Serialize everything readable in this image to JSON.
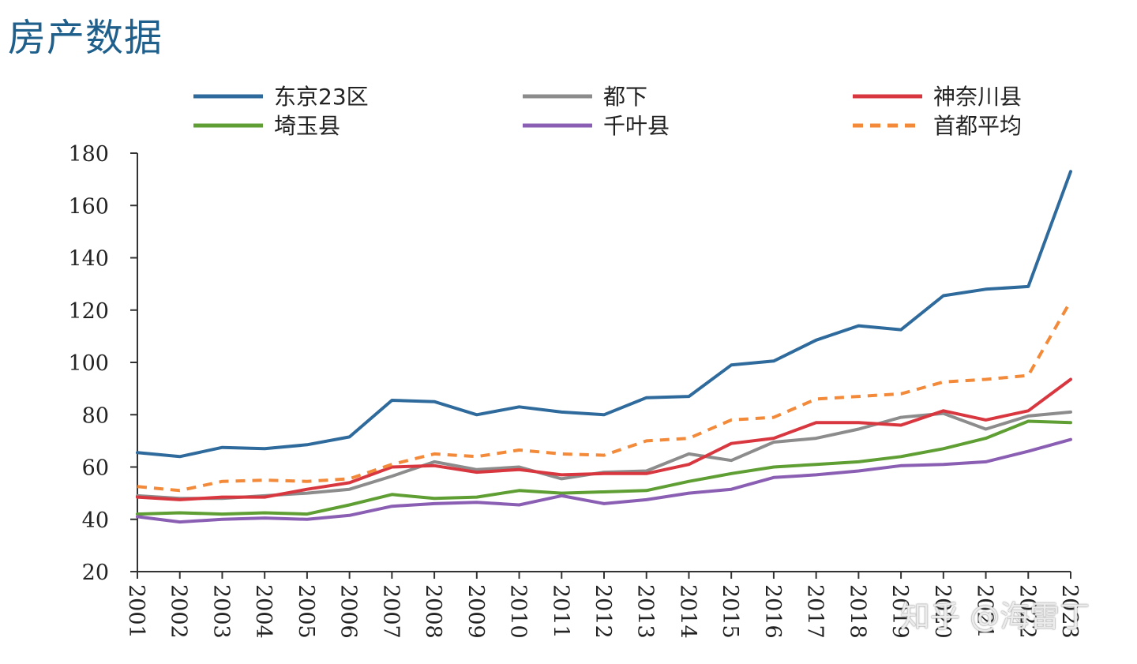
{
  "header": {
    "title": "房产数据"
  },
  "watermark": "知乎 @海雷丁",
  "colors": {
    "tokyo23": "#2e6a9c",
    "tokyo_other": "#8c8c8c",
    "kanagawa": "#d9373f",
    "saitama": "#5e9e33",
    "chiba": "#8a5fb3",
    "average": "#f28a3a"
  },
  "chart_data": {
    "type": "line",
    "title": "",
    "xlabel": "",
    "ylabel": "",
    "ylim": [
      20,
      180
    ],
    "yticks": [
      "20",
      "40",
      "60",
      "80",
      "100",
      "120",
      "140",
      "160",
      "180"
    ],
    "categories": [
      "2001",
      "2002",
      "2003",
      "2004",
      "2005",
      "2006",
      "2007",
      "2008",
      "2009",
      "2010",
      "2011",
      "2012",
      "2013",
      "2014",
      "2015",
      "2016",
      "2017",
      "2018",
      "2019",
      "2020",
      "2021",
      "2022",
      "2023"
    ],
    "legend_position": "top",
    "series": [
      {
        "key": "tokyo23",
        "name": "东京23区",
        "dashed": false,
        "values": [
          65.5,
          64,
          67.5,
          67,
          68.5,
          71.5,
          85.5,
          85,
          80,
          83,
          81,
          80,
          86.5,
          87,
          99,
          100.5,
          108.5,
          114,
          112.5,
          125.5,
          128,
          129,
          173
        ]
      },
      {
        "key": "tokyo_other",
        "name": "都下",
        "dashed": false,
        "values": [
          49,
          48,
          48,
          49,
          50,
          51.5,
          56.5,
          62,
          59,
          60,
          55.5,
          58,
          58.5,
          65,
          62.5,
          69.5,
          71,
          74.5,
          79,
          80.5,
          74.5,
          79.5,
          81
        ]
      },
      {
        "key": "kanagawa",
        "name": "神奈川县",
        "dashed": false,
        "values": [
          48.5,
          47.5,
          48.5,
          48.5,
          51.5,
          54,
          60,
          60.5,
          58,
          59,
          57,
          57.5,
          57.5,
          61,
          69,
          71,
          77,
          77,
          76,
          81.5,
          78,
          81.5,
          93.5
        ]
      },
      {
        "key": "saitama",
        "name": "埼玉县",
        "dashed": false,
        "values": [
          42,
          42.5,
          42,
          42.5,
          42,
          45.5,
          49.5,
          48,
          48.5,
          51,
          50,
          50.5,
          51,
          54.5,
          57.5,
          60,
          61,
          62,
          64,
          67,
          71,
          77.5,
          77
        ]
      },
      {
        "key": "chiba",
        "name": "千叶县",
        "dashed": false,
        "values": [
          41,
          39,
          40,
          40.5,
          40,
          41.5,
          45,
          46,
          46.5,
          45.5,
          49,
          46,
          47.5,
          50,
          51.5,
          56,
          57,
          58.5,
          60.5,
          61,
          62,
          66,
          70.5
        ]
      },
      {
        "key": "average",
        "name": "首都平均",
        "dashed": true,
        "values": [
          52.5,
          51,
          54.5,
          55,
          54.5,
          55.5,
          61,
          65,
          64,
          66.5,
          65,
          64.5,
          70,
          71,
          78,
          79,
          86,
          87,
          88,
          92.5,
          93.5,
          95,
          123.5
        ]
      }
    ]
  }
}
